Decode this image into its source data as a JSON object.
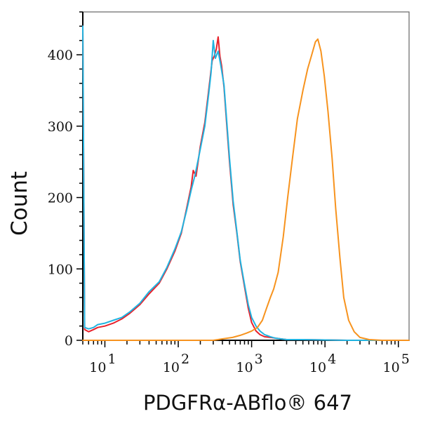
{
  "chart_data": {
    "type": "line",
    "title": "",
    "xlabel": "PDGFRα-ABflo® 647",
    "ylabel": "Count",
    "xscale": "log",
    "xlim": [
      5,
      140000
    ],
    "ylim": [
      0,
      460
    ],
    "grid": false,
    "y_ticks": [
      {
        "value": 0,
        "label": "0"
      },
      {
        "value": 100,
        "label": "100"
      },
      {
        "value": 200,
        "label": "200"
      },
      {
        "value": 300,
        "label": "300"
      },
      {
        "value": 400,
        "label": "400"
      }
    ],
    "x_ticks": [
      {
        "value": 10,
        "base": "10",
        "exp": "1"
      },
      {
        "value": 100,
        "base": "10",
        "exp": "2"
      },
      {
        "value": 1000,
        "base": "10",
        "exp": "3"
      },
      {
        "value": 10000,
        "base": "10",
        "exp": "4"
      },
      {
        "value": 100000,
        "base": "10",
        "exp": "5"
      }
    ],
    "series": [
      {
        "color": "#e8212b",
        "x": [
          5,
          5.3,
          6,
          7,
          8,
          10,
          13,
          17,
          22,
          30,
          40,
          55,
          70,
          90,
          110,
          130,
          150,
          160,
          175,
          200,
          230,
          260,
          290,
          310,
          330,
          350,
          370,
          390,
          420,
          460,
          500,
          560,
          630,
          700,
          800,
          900,
          1000,
          1150,
          1300,
          1500,
          1800,
          2100,
          2500,
          3000,
          5000,
          20000,
          140000
        ],
        "y": [
          440,
          15,
          12,
          15,
          18,
          20,
          24,
          30,
          38,
          50,
          65,
          80,
          100,
          125,
          150,
          185,
          215,
          238,
          230,
          272,
          305,
          350,
          392,
          398,
          408,
          425,
          398,
          385,
          355,
          300,
          250,
          190,
          150,
          110,
          75,
          45,
          25,
          13,
          8,
          5,
          4,
          3,
          2,
          1,
          1,
          0,
          0
        ]
      },
      {
        "color": "#20b3e0",
        "x": [
          5,
          5.3,
          6,
          7,
          8,
          10,
          13,
          17,
          22,
          30,
          40,
          55,
          70,
          90,
          110,
          130,
          150,
          170,
          200,
          230,
          260,
          280,
          300,
          320,
          350,
          380,
          420,
          460,
          500,
          560,
          630,
          700,
          800,
          900,
          1000,
          1150,
          1300,
          1500,
          1800,
          2100,
          2500,
          3000,
          5000,
          20000,
          140000
        ],
        "y": [
          440,
          18,
          16,
          18,
          22,
          24,
          28,
          32,
          40,
          52,
          68,
          82,
          102,
          128,
          152,
          182,
          210,
          232,
          268,
          300,
          345,
          375,
          420,
          395,
          405,
          385,
          358,
          305,
          255,
          195,
          152,
          112,
          78,
          50,
          32,
          20,
          13,
          8,
          5,
          3,
          2,
          1,
          1,
          0,
          0
        ]
      },
      {
        "color": "#f7931e",
        "x": [
          5,
          300,
          400,
          550,
          700,
          850,
          1000,
          1200,
          1400,
          1600,
          1800,
          2000,
          2300,
          2700,
          3100,
          3600,
          4200,
          5000,
          5800,
          6600,
          7400,
          8000,
          8800,
          9800,
          11000,
          12500,
          14000,
          16000,
          18000,
          21000,
          25000,
          30000,
          40000,
          60000,
          140000
        ],
        "y": [
          0,
          0,
          2,
          4,
          7,
          10,
          13,
          18,
          28,
          45,
          60,
          72,
          95,
          145,
          200,
          255,
          310,
          350,
          380,
          400,
          418,
          422,
          405,
          370,
          320,
          255,
          185,
          115,
          60,
          28,
          12,
          4,
          1,
          0,
          0
        ]
      }
    ]
  }
}
